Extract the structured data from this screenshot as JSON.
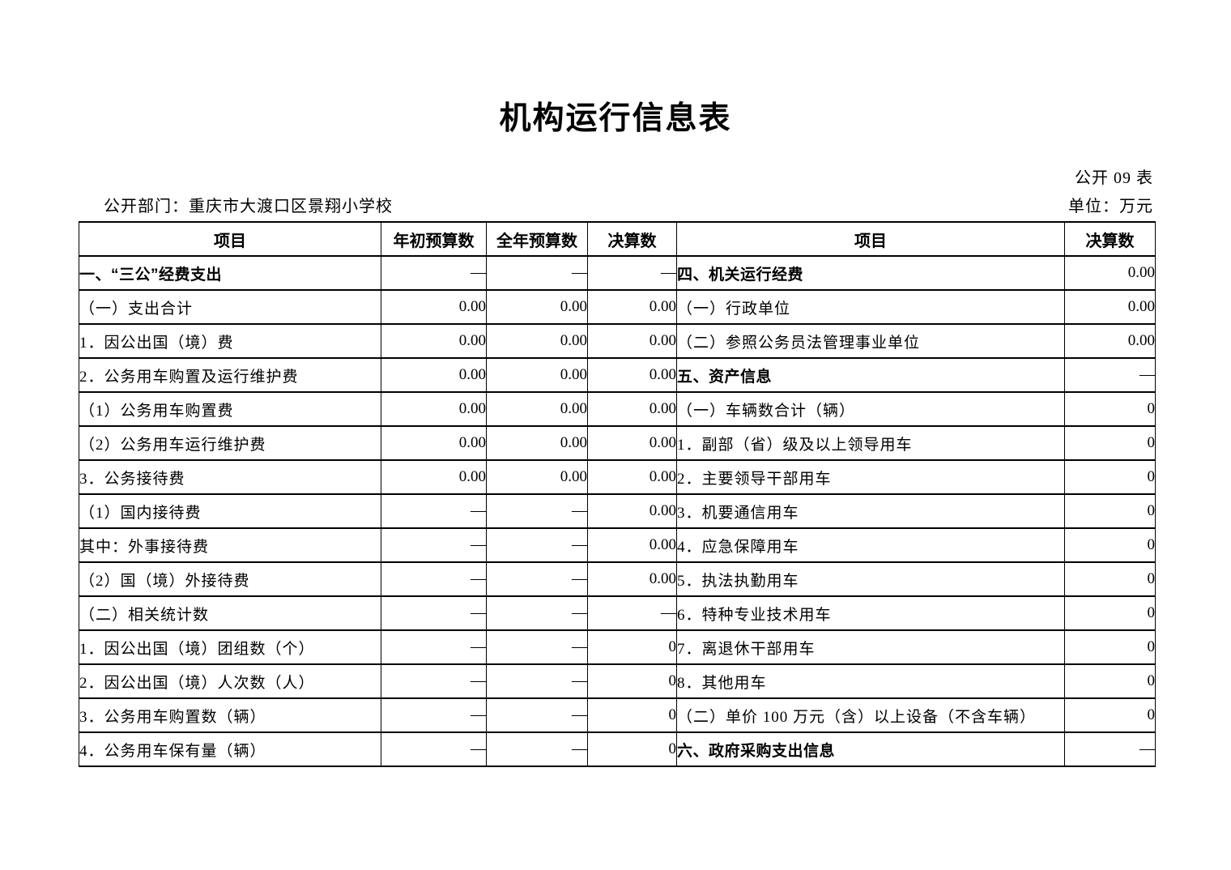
{
  "page": {
    "title": "机构运行信息表",
    "table_code": "公开 09 表",
    "department_label": "公开部门：重庆市大渡口区景翔小学校",
    "unit_label": "单位：万元"
  },
  "table": {
    "headers": {
      "item_left": "项目",
      "initial_budget": "年初预算数",
      "annual_budget": "全年预算数",
      "final_left": "决算数",
      "item_right": "项目",
      "final_right": "决算数"
    },
    "left_rows": [
      {
        "label": "一、“三公”经费支出",
        "indent": 0,
        "bold": true,
        "values": [
          "—",
          "—",
          "—"
        ]
      },
      {
        "label": "（一）支出合计",
        "indent": 0,
        "bold": false,
        "values": [
          "0.00",
          "0.00",
          "0.00"
        ]
      },
      {
        "label": "1．因公出国（境）费",
        "indent": 1,
        "bold": false,
        "values": [
          "0.00",
          "0.00",
          "0.00"
        ]
      },
      {
        "label": "2．公务用车购置及运行维护费",
        "indent": 1,
        "bold": false,
        "values": [
          "0.00",
          "0.00",
          "0.00"
        ]
      },
      {
        "label": "（1）公务用车购置费",
        "indent": 2,
        "bold": false,
        "values": [
          "0.00",
          "0.00",
          "0.00"
        ]
      },
      {
        "label": "（2）公务用车运行维护费",
        "indent": 2,
        "bold": false,
        "values": [
          "0.00",
          "0.00",
          "0.00"
        ]
      },
      {
        "label": "3．公务接待费",
        "indent": 1,
        "bold": false,
        "values": [
          "0.00",
          "0.00",
          "0.00"
        ]
      },
      {
        "label": "（1）国内接待费",
        "indent": 2,
        "bold": false,
        "values": [
          "—",
          "—",
          "0.00"
        ]
      },
      {
        "label": "其中：外事接待费",
        "indent": 3,
        "bold": false,
        "values": [
          "—",
          "—",
          "0.00"
        ]
      },
      {
        "label": "（2）国（境）外接待费",
        "indent": 2,
        "bold": false,
        "values": [
          "—",
          "—",
          "0.00"
        ]
      },
      {
        "label": "（二）相关统计数",
        "indent": 0,
        "bold": false,
        "values": [
          "—",
          "—",
          "—"
        ]
      },
      {
        "label": "1．因公出国（境）团组数（个）",
        "indent": 1,
        "bold": false,
        "values": [
          "—",
          "—",
          "0"
        ]
      },
      {
        "label": "2．因公出国（境）人次数（人）",
        "indent": 1,
        "bold": false,
        "values": [
          "—",
          "—",
          "0"
        ]
      },
      {
        "label": "3．公务用车购置数（辆）",
        "indent": 1,
        "bold": false,
        "values": [
          "—",
          "—",
          "0"
        ]
      },
      {
        "label": "4．公务用车保有量（辆）",
        "indent": 1,
        "bold": false,
        "values": [
          "—",
          "—",
          "0"
        ]
      }
    ],
    "right_rows": [
      {
        "label": "四、机关运行经费",
        "indent": 0,
        "bold": true,
        "value": "0.00"
      },
      {
        "label": "（一）行政单位",
        "indent": 0,
        "bold": false,
        "value": "0.00"
      },
      {
        "label": "（二）参照公务员法管理事业单位",
        "indent": 0,
        "bold": false,
        "value": "0.00"
      },
      {
        "label": "五、资产信息",
        "indent": 0,
        "bold": true,
        "value": "—"
      },
      {
        "label": "（一）车辆数合计（辆）",
        "indent": 0,
        "bold": false,
        "value": "0"
      },
      {
        "label": "1．副部（省）级及以上领导用车",
        "indent": 1,
        "bold": false,
        "value": "0"
      },
      {
        "label": "2．主要领导干部用车",
        "indent": 1,
        "bold": false,
        "value": "0"
      },
      {
        "label": "3．机要通信用车",
        "indent": 1,
        "bold": false,
        "value": "0"
      },
      {
        "label": "4．应急保障用车",
        "indent": 1,
        "bold": false,
        "value": "0"
      },
      {
        "label": "5．执法执勤用车",
        "indent": 1,
        "bold": false,
        "value": "0"
      },
      {
        "label": "6．特种专业技术用车",
        "indent": 1,
        "bold": false,
        "value": "0"
      },
      {
        "label": "7．离退休干部用车",
        "indent": 1,
        "bold": false,
        "value": "0"
      },
      {
        "label": "8．其他用车",
        "indent": 1,
        "bold": false,
        "value": "0"
      },
      {
        "label": "（二）单价 100 万元（含）以上设备（不含车辆）",
        "indent": 0,
        "bold": false,
        "value": "0"
      },
      {
        "label": "六、政府采购支出信息",
        "indent": 0,
        "bold": true,
        "value": "—"
      }
    ]
  }
}
